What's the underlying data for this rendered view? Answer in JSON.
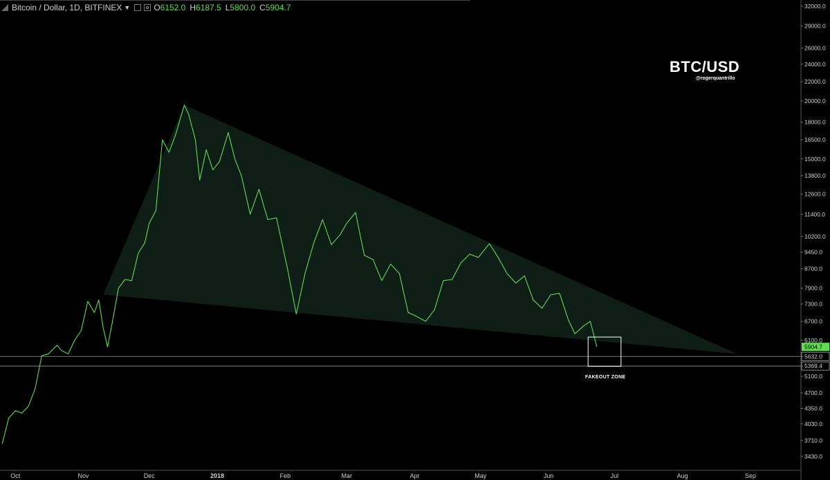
{
  "header": {
    "symbol": "Bitcoin / Dollar, 1D, BITFINEX",
    "open_label": "O",
    "open": "6152.0",
    "high_label": "H",
    "high": "6187.5",
    "low_label": "L",
    "low": "5800.0",
    "close_label": "C",
    "close": "5904.7"
  },
  "watermark": {
    "title": "BTC/USD",
    "handle": "@rogerquantrillo"
  },
  "annotation": {
    "zone_label": "FAKEOUT ZONE"
  },
  "colors": {
    "background": "#000000",
    "price_line": "#5fdc4f",
    "triangle_fill": "#0f1d17",
    "axis_text": "#cfcfcf"
  },
  "chart_data": {
    "type": "line",
    "series": [
      {
        "x": [
          "2017-09-25",
          "2017-09-28",
          "2017-10-01",
          "2017-10-04",
          "2017-10-07",
          "2017-10-10",
          "2017-10-13",
          "2017-10-16",
          "2017-10-20",
          "2017-10-22",
          "2017-10-25",
          "2017-10-28",
          "2017-10-31",
          "2017-11-03",
          "2017-11-06",
          "2017-11-08",
          "2017-11-10",
          "2017-11-12",
          "2017-11-14",
          "2017-11-17",
          "2017-11-20",
          "2017-11-23",
          "2017-11-26",
          "2017-11-29",
          "2017-12-01",
          "2017-12-04",
          "2017-12-07",
          "2017-12-10",
          "2017-12-13",
          "2017-12-17",
          "2017-12-19",
          "2017-12-22",
          "2017-12-24",
          "2017-12-27",
          "2017-12-30",
          "2018-01-02",
          "2018-01-06",
          "2018-01-09",
          "2018-01-12",
          "2018-01-16",
          "2018-01-20",
          "2018-01-24",
          "2018-01-28",
          "2018-02-02",
          "2018-02-06",
          "2018-02-10",
          "2018-02-14",
          "2018-02-18",
          "2018-02-22",
          "2018-02-26",
          "2018-03-01",
          "2018-03-05",
          "2018-03-09",
          "2018-03-13",
          "2018-03-17",
          "2018-03-21",
          "2018-03-25",
          "2018-03-29",
          "2018-04-01",
          "2018-04-06",
          "2018-04-10",
          "2018-04-14",
          "2018-04-18",
          "2018-04-22",
          "2018-04-26",
          "2018-04-30",
          "2018-05-05",
          "2018-05-09",
          "2018-05-13",
          "2018-05-17",
          "2018-05-21",
          "2018-05-25",
          "2018-05-29",
          "2018-06-02",
          "2018-06-06",
          "2018-06-10",
          "2018-06-13",
          "2018-06-17",
          "2018-06-20",
          "2018-06-23"
        ],
        "values": [
          3650,
          4150,
          4300,
          4250,
          4400,
          4800,
          5650,
          5700,
          5950,
          5800,
          5700,
          6100,
          6400,
          7400,
          7000,
          7450,
          6500,
          5900,
          6600,
          7900,
          8250,
          8200,
          9400,
          9900,
          10900,
          11600,
          16500,
          15500,
          16900,
          19600,
          18700,
          16500,
          13500,
          15700,
          14200,
          14800,
          17100,
          15000,
          13800,
          11400,
          12900,
          11100,
          11200,
          8700,
          6950,
          8500,
          9900,
          11100,
          9800,
          10300,
          10900,
          11500,
          9300,
          9100,
          8200,
          8900,
          8500,
          7000,
          6900,
          6700,
          7100,
          8200,
          8250,
          8950,
          9350,
          9200,
          9850,
          9200,
          8500,
          8100,
          8400,
          7450,
          7150,
          7650,
          7700,
          6750,
          6300,
          6550,
          6700,
          5904.7
        ]
      }
    ],
    "triangle": {
      "apex_left": {
        "x": "2017-11-10",
        "y": 7650
      },
      "top": {
        "x": "2017-12-17",
        "y": 19600
      },
      "right": {
        "x": "2018-08-26",
        "y": 5700
      }
    },
    "horizontal_lines": [
      5632.0,
      5369.4
    ],
    "box": {
      "x0": "2018-06-19",
      "x1": "2018-07-04",
      "y0": 5360,
      "y1": 6200
    },
    "last_price": 5904.7,
    "y_ticks": [
      "32000.0",
      "29000.0",
      "26000.0",
      "24000.0",
      "22000.0",
      "20000.0",
      "18000.0",
      "16500.0",
      "15000.0",
      "13800.0",
      "12600.0",
      "11400.0",
      "10200.0",
      "9450.0",
      "8700.0",
      "7900.0",
      "7300.0",
      "6700.0",
      "6100.0",
      "5632.0",
      "5369.4",
      "5100.0",
      "4700.0",
      "4350.0",
      "4030.0",
      "3710.0",
      "3430.0"
    ],
    "x_ticks": [
      {
        "label": "Oct",
        "x": "2017-10-01"
      },
      {
        "label": "Nov",
        "x": "2017-11-01"
      },
      {
        "label": "Dec",
        "x": "2017-12-01"
      },
      {
        "label": "2018",
        "x": "2018-01-01"
      },
      {
        "label": "Feb",
        "x": "2018-02-01"
      },
      {
        "label": "Mar",
        "x": "2018-03-01"
      },
      {
        "label": "Apr",
        "x": "2018-04-01"
      },
      {
        "label": "May",
        "x": "2018-05-01"
      },
      {
        "label": "Jun",
        "x": "2018-06-01"
      },
      {
        "label": "Jul",
        "x": "2018-07-01"
      },
      {
        "label": "Aug",
        "x": "2018-08-01"
      },
      {
        "label": "Sep",
        "x": "2018-09-01"
      }
    ],
    "y_scale": "log",
    "ylim": [
      3200,
      33000
    ],
    "xlim": [
      "2017-09-24",
      "2018-09-24"
    ]
  }
}
